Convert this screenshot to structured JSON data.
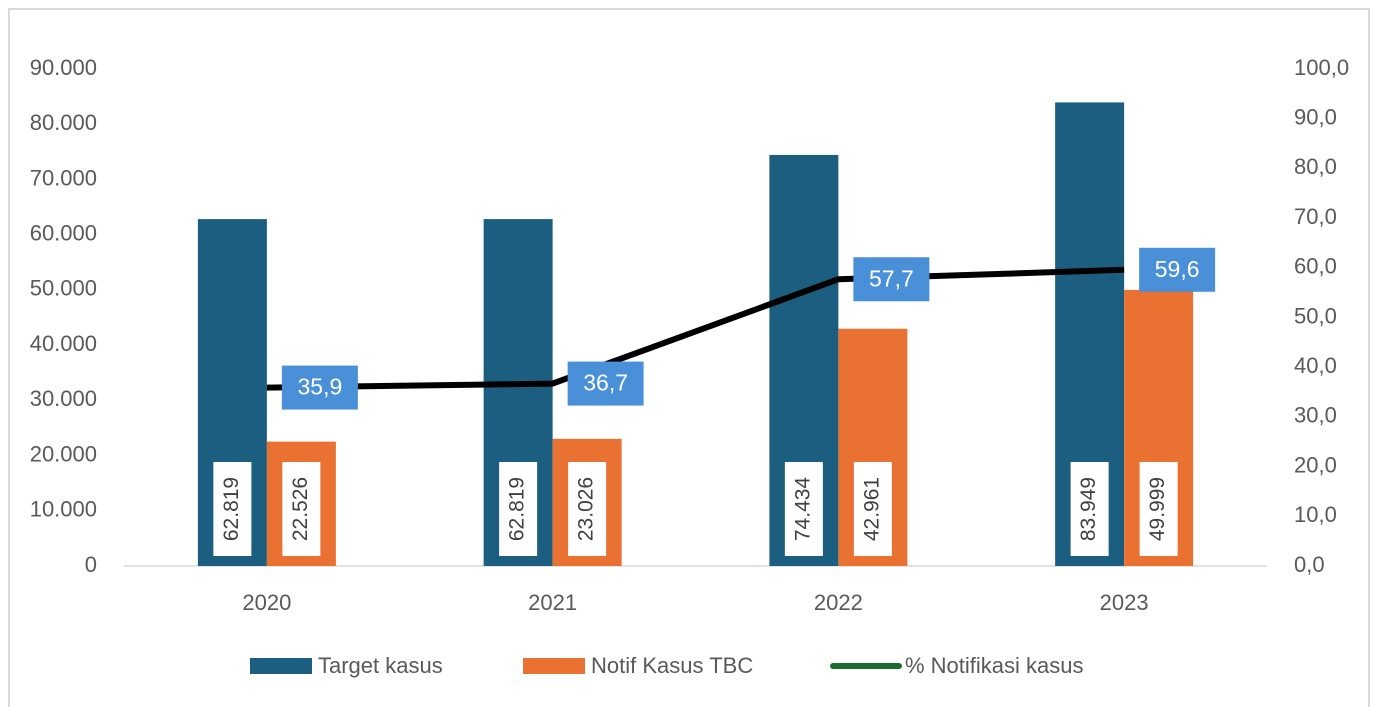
{
  "chart_data": {
    "type": "bar_line",
    "categories": [
      "2020",
      "2021",
      "2022",
      "2023"
    ],
    "series": [
      {
        "name": "Target kasus",
        "type": "bar",
        "color": "#1b5e80",
        "values": [
          62819,
          62819,
          74434,
          83949
        ],
        "value_labels": [
          "62.819",
          "62.819",
          "74.434",
          "83.949"
        ]
      },
      {
        "name": "Notif Kasus TBC",
        "type": "bar",
        "color": "#e97132",
        "values": [
          22526,
          23026,
          42961,
          49999
        ],
        "value_labels": [
          "22.526",
          "23.026",
          "42.961",
          "49.999"
        ]
      },
      {
        "name": "% Notifikasi kasus",
        "type": "line",
        "axis": "y2",
        "color": "#000000",
        "legend_color": "#1a6b30",
        "label_color": "#4a90d9",
        "values": [
          35.9,
          36.7,
          57.7,
          59.6
        ],
        "value_labels": [
          "35,9",
          "36,7",
          "57,7",
          "59,6"
        ]
      }
    ],
    "ylim": [
      0,
      90000
    ],
    "yticks": [
      {
        "value": 0,
        "label": "0"
      },
      {
        "value": 10000,
        "label": "10.000"
      },
      {
        "value": 20000,
        "label": "20.000"
      },
      {
        "value": 30000,
        "label": "30.000"
      },
      {
        "value": 40000,
        "label": "40.000"
      },
      {
        "value": 50000,
        "label": "50.000"
      },
      {
        "value": 60000,
        "label": "60.000"
      },
      {
        "value": 70000,
        "label": "70.000"
      },
      {
        "value": 80000,
        "label": "80.000"
      },
      {
        "value": 90000,
        "label": "90.000"
      }
    ],
    "y2lim": [
      0,
      100
    ],
    "y2ticks": [
      {
        "value": 0,
        "label": "0,0"
      },
      {
        "value": 10,
        "label": "10,0"
      },
      {
        "value": 20,
        "label": "20,0"
      },
      {
        "value": 30,
        "label": "30,0"
      },
      {
        "value": 40,
        "label": "40,0"
      },
      {
        "value": 50,
        "label": "50,0"
      },
      {
        "value": 60,
        "label": "60,0"
      },
      {
        "value": 70,
        "label": "70,0"
      },
      {
        "value": 80,
        "label": "80,0"
      },
      {
        "value": 90,
        "label": "90,0"
      },
      {
        "value": 100,
        "label": "100,0"
      }
    ],
    "grid": false,
    "legend": "bottom"
  }
}
